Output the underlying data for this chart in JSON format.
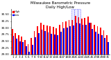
{
  "title": "Milwaukee Barometric Pressure",
  "subtitle": "Daily High/Low",
  "ylim": [
    29.0,
    30.7
  ],
  "bar_width": 0.4,
  "high_color": "#FF0000",
  "low_color": "#0000FF",
  "days": [
    1,
    2,
    3,
    4,
    5,
    6,
    7,
    8,
    9,
    10,
    11,
    12,
    13,
    14,
    15,
    16,
    17,
    18,
    19,
    20,
    21,
    22,
    23,
    24,
    25,
    26,
    27,
    28,
    29,
    30,
    31
  ],
  "high": [
    29.95,
    29.8,
    29.72,
    29.68,
    29.55,
    29.38,
    29.62,
    29.88,
    30.05,
    30.18,
    30.12,
    30.08,
    30.05,
    30.02,
    29.98,
    30.1,
    30.22,
    30.25,
    30.28,
    30.3,
    30.45,
    30.4,
    30.35,
    30.38,
    30.42,
    30.2,
    30.1,
    30.05,
    30.0,
    29.9,
    29.72
  ],
  "low": [
    29.7,
    29.6,
    29.5,
    29.45,
    29.3,
    29.1,
    29.35,
    29.65,
    29.8,
    29.92,
    29.88,
    29.82,
    29.78,
    29.75,
    29.72,
    29.85,
    29.98,
    30.0,
    30.05,
    30.08,
    30.18,
    30.15,
    30.1,
    30.12,
    30.18,
    29.95,
    29.85,
    29.78,
    29.72,
    29.62,
    29.45
  ],
  "highlight_days": [
    20,
    21,
    22
  ],
  "highlight_color": "#8888FF",
  "background_color": "#FFFFFF",
  "tick_fontsize": 3.0,
  "title_fontsize": 4.0,
  "ytick_fontsize": 3.0,
  "yticks": [
    29.0,
    29.25,
    29.5,
    29.75,
    30.0,
    30.25,
    30.5
  ]
}
